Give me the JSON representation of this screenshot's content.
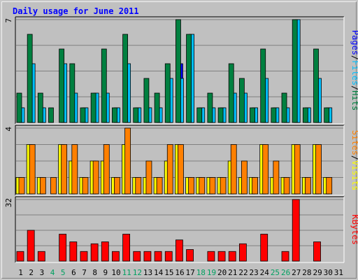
{
  "title": "Daily usage for June 2011",
  "chart_data": [
    {
      "type": "bar",
      "panel": "pages-files-hits",
      "categories": [
        "1",
        "2",
        "3",
        "4",
        "5",
        "6",
        "7",
        "8",
        "9",
        "10",
        "11",
        "12",
        "13",
        "14",
        "15",
        "16",
        "17",
        "18",
        "19",
        "20",
        "21",
        "22",
        "23",
        "24",
        "25",
        "26",
        "27",
        "28",
        "29",
        "30",
        "31"
      ],
      "weekend_days": [
        "4",
        "5",
        "11",
        "12",
        "18",
        "19",
        "25",
        "26"
      ],
      "y_axis_max_label": "7",
      "ylim": [
        0,
        7
      ],
      "grid": true,
      "series": [
        {
          "name": "Pages",
          "color": "#0000ff",
          "values": [
            1,
            1,
            1,
            0,
            1,
            1,
            1,
            1,
            1,
            1,
            1,
            1,
            1,
            1,
            1,
            4,
            1,
            1,
            1,
            1,
            1,
            1,
            1,
            1,
            1,
            1,
            1,
            1,
            1,
            1,
            0
          ]
        },
        {
          "name": "Files",
          "color": "#00c0ff",
          "values": [
            1,
            4,
            1,
            0,
            4,
            2,
            1,
            2,
            2,
            1,
            4,
            1,
            1,
            1,
            3,
            3,
            6,
            1,
            1,
            1,
            2,
            2,
            1,
            3,
            1,
            1,
            7,
            1,
            3,
            1,
            0
          ]
        },
        {
          "name": "Hits",
          "color": "#008040",
          "values": [
            2,
            6,
            2,
            1,
            5,
            4,
            1,
            2,
            5,
            1,
            6,
            1,
            3,
            2,
            4,
            7,
            6,
            1,
            2,
            1,
            4,
            3,
            1,
            5,
            1,
            2,
            7,
            1,
            5,
            1,
            0
          ]
        }
      ],
      "legend_labels": [
        "Pages",
        "Files",
        "Hits"
      ]
    },
    {
      "type": "bar",
      "panel": "sites-visits",
      "categories": [
        "1",
        "2",
        "3",
        "4",
        "5",
        "6",
        "7",
        "8",
        "9",
        "10",
        "11",
        "12",
        "13",
        "14",
        "15",
        "16",
        "17",
        "18",
        "19",
        "20",
        "21",
        "22",
        "23",
        "24",
        "25",
        "26",
        "27",
        "28",
        "29",
        "30",
        "31"
      ],
      "y_axis_max_label": "4",
      "ylim": [
        0,
        4
      ],
      "grid": true,
      "series": [
        {
          "name": "Visits",
          "color": "#ffff00",
          "values": [
            1,
            3,
            1,
            0,
            3,
            2,
            1,
            2,
            2,
            1,
            3,
            1,
            1,
            1,
            2,
            3,
            1,
            1,
            1,
            1,
            2,
            1,
            1,
            3,
            1,
            1,
            3,
            1,
            3,
            1,
            0
          ]
        },
        {
          "name": "Sites",
          "color": "#ff8000",
          "values": [
            1,
            3,
            1,
            1,
            3,
            3,
            1,
            2,
            3,
            1,
            4,
            1,
            2,
            1,
            3,
            3,
            1,
            1,
            1,
            1,
            3,
            2,
            1,
            3,
            2,
            1,
            3,
            1,
            3,
            1,
            0
          ]
        }
      ],
      "legend_labels": [
        "Sites",
        "Visits"
      ]
    },
    {
      "type": "bar",
      "panel": "kbytes",
      "categories": [
        "1",
        "2",
        "3",
        "4",
        "5",
        "6",
        "7",
        "8",
        "9",
        "10",
        "11",
        "12",
        "13",
        "14",
        "15",
        "16",
        "17",
        "18",
        "19",
        "20",
        "21",
        "22",
        "23",
        "24",
        "25",
        "26",
        "27",
        "28",
        "29",
        "30",
        "31"
      ],
      "y_axis_max_label": "32",
      "ylim": [
        0,
        32
      ],
      "grid": true,
      "series": [
        {
          "name": "KBytes",
          "color": "#ff0000",
          "values": [
            5,
            16,
            5,
            0,
            14,
            10,
            5,
            9,
            10,
            5,
            14,
            5,
            5,
            5,
            5,
            11,
            6,
            0,
            5,
            5,
            5,
            9,
            0,
            14,
            0,
            5,
            32,
            0,
            10,
            0,
            0
          ]
        }
      ],
      "legend_labels": [
        "KBytes"
      ]
    }
  ],
  "colors": {
    "panel_bg": "#c0c0c0",
    "grid": "#808080",
    "axis_dark": "#000000",
    "axis_light": "#ffffff",
    "title": "#0000ff",
    "day_weekday": "#000000",
    "day_weekend": "#00a060",
    "legend_sep": "#000000"
  }
}
